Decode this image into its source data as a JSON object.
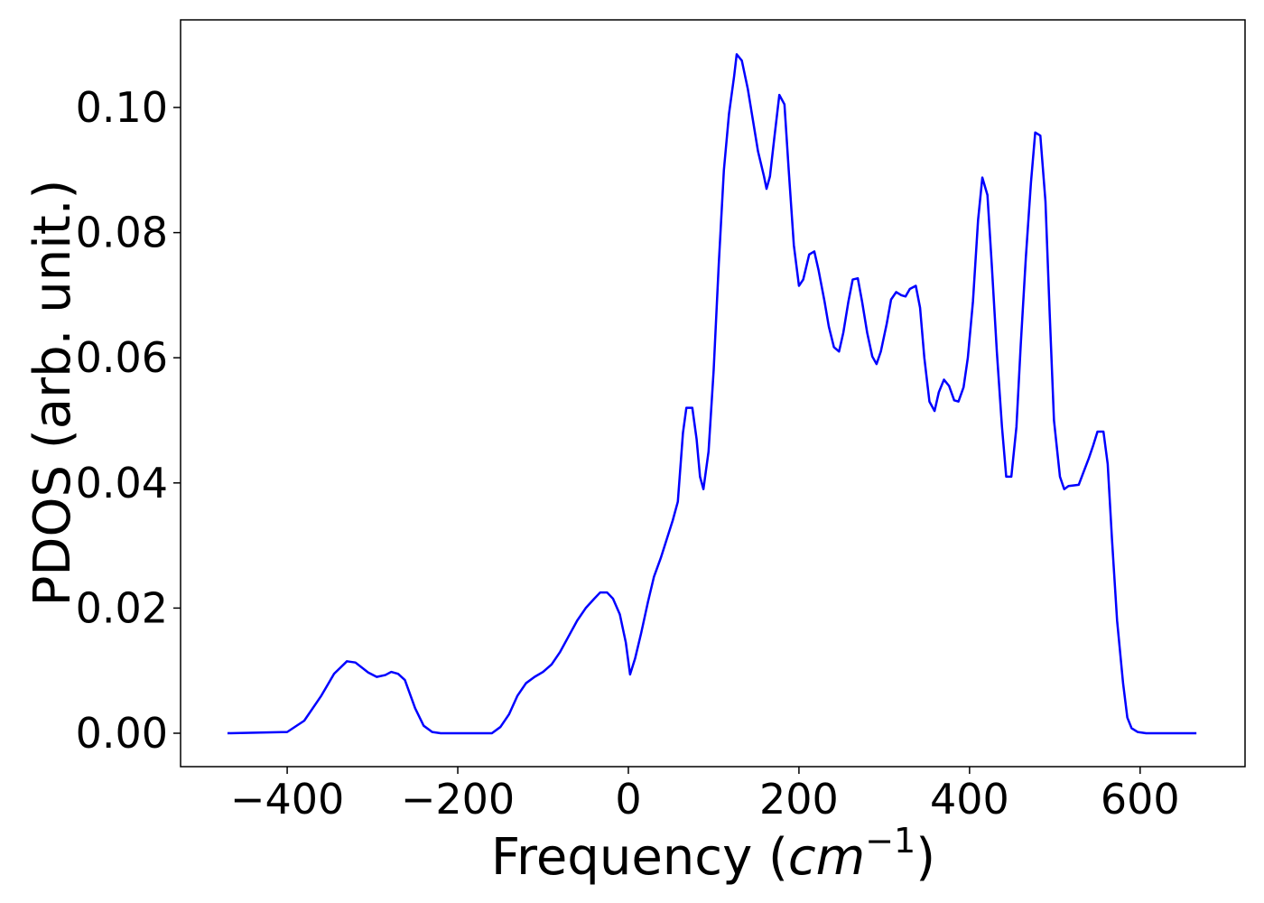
{
  "chart_data": {
    "type": "line",
    "xlabel_parts": [
      "Frequency (",
      "cm",
      "−1",
      ")"
    ],
    "ylabel": "PDOS (arb. unit.)",
    "xlim": [
      -525,
      723
    ],
    "ylim": [
      -0.00534,
      0.114
    ],
    "xticks": [
      {
        "value": -400,
        "label": "−400"
      },
      {
        "value": -200,
        "label": "−200"
      },
      {
        "value": 0,
        "label": "0"
      },
      {
        "value": 200,
        "label": "200"
      },
      {
        "value": 400,
        "label": "400"
      },
      {
        "value": 600,
        "label": "600"
      }
    ],
    "yticks": [
      {
        "value": 0,
        "label": "0.00"
      },
      {
        "value": 0.02,
        "label": "0.02"
      },
      {
        "value": 0.04,
        "label": "0.04"
      },
      {
        "value": 0.06,
        "label": "0.06"
      },
      {
        "value": 0.08,
        "label": "0.08"
      },
      {
        "value": 0.1,
        "label": "0.10"
      }
    ],
    "grid": false,
    "x": [
      -470,
      -400,
      -380,
      -360,
      -345,
      -330,
      -320,
      -305,
      -295,
      -285,
      -278,
      -270,
      -262,
      -250,
      -240,
      -230,
      -220,
      -160,
      -150,
      -140,
      -130,
      -120,
      -110,
      -100,
      -90,
      -80,
      -70,
      -60,
      -50,
      -40,
      -33,
      -25,
      -18,
      -10,
      -3,
      2,
      8,
      15,
      23,
      30,
      38,
      45,
      52,
      58,
      64,
      68,
      75,
      80,
      84,
      88,
      94,
      100,
      106,
      112,
      118,
      124,
      127,
      133,
      140,
      146,
      152,
      159,
      162,
      166,
      171,
      177,
      183,
      188,
      194,
      200,
      205,
      212,
      218,
      223,
      230,
      235,
      241,
      247,
      252,
      258,
      263,
      269,
      274,
      280,
      286,
      291,
      296,
      303,
      308,
      314,
      320,
      325,
      330,
      337,
      342,
      347,
      353,
      359,
      364,
      370,
      376,
      382,
      387,
      393,
      398,
      404,
      410,
      415,
      421,
      426,
      432,
      438,
      443,
      449,
      455,
      460,
      466,
      472,
      477,
      483,
      489,
      494,
      499,
      506,
      511,
      516,
      528,
      533,
      540,
      545,
      550,
      557,
      562,
      567,
      573,
      580,
      585,
      590,
      597,
      607,
      666
    ],
    "series": [
      {
        "color": "#0000ff",
        "values": [
          0,
          0.0002,
          0.002,
          0.006,
          0.0095,
          0.0115,
          0.0113,
          0.0097,
          0.009,
          0.0093,
          0.0098,
          0.0095,
          0.0085,
          0.004,
          0.0012,
          0.0002,
          0,
          0,
          0.001,
          0.003,
          0.006,
          0.008,
          0.009,
          0.0098,
          0.011,
          0.013,
          0.0155,
          0.018,
          0.02,
          0.0215,
          0.0225,
          0.0225,
          0.0215,
          0.019,
          0.0145,
          0.0094,
          0.012,
          0.016,
          0.021,
          0.025,
          0.028,
          0.031,
          0.034,
          0.037,
          0.048,
          0.052,
          0.052,
          0.047,
          0.041,
          0.039,
          0.045,
          0.058,
          0.075,
          0.09,
          0.099,
          0.105,
          0.1085,
          0.1075,
          0.103,
          0.098,
          0.093,
          0.089,
          0.087,
          0.089,
          0.095,
          0.102,
          0.1005,
          0.09,
          0.078,
          0.0715,
          0.0725,
          0.0765,
          0.077,
          0.074,
          0.069,
          0.065,
          0.0617,
          0.061,
          0.064,
          0.069,
          0.0725,
          0.0727,
          0.069,
          0.064,
          0.0602,
          0.059,
          0.061,
          0.0655,
          0.0693,
          0.0705,
          0.07,
          0.0698,
          0.071,
          0.0715,
          0.068,
          0.06,
          0.053,
          0.0515,
          0.0545,
          0.0565,
          0.0555,
          0.0532,
          0.053,
          0.0553,
          0.06,
          0.069,
          0.082,
          0.0888,
          0.086,
          0.075,
          0.061,
          0.049,
          0.041,
          0.041,
          0.049,
          0.062,
          0.076,
          0.088,
          0.096,
          0.0955,
          0.085,
          0.067,
          0.05,
          0.041,
          0.039,
          0.0395,
          0.0397,
          0.0415,
          0.044,
          0.046,
          0.0482,
          0.0482,
          0.043,
          0.031,
          0.018,
          0.008,
          0.0025,
          0.0008,
          0.0002,
          0,
          0
        ]
      }
    ]
  }
}
